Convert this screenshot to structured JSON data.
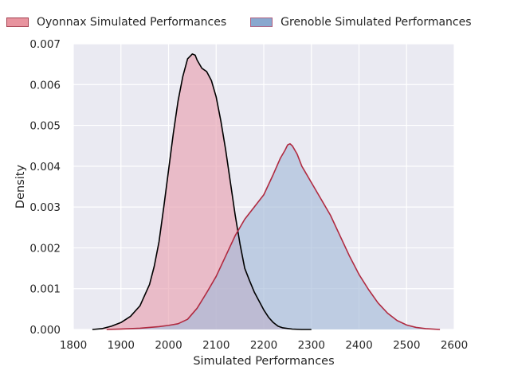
{
  "chart_data": {
    "type": "area",
    "xlabel": "Simulated Performances",
    "ylabel": "Density",
    "xlim": [
      1800,
      2600
    ],
    "ylim": [
      0,
      0.007
    ],
    "x_ticks": [
      "1800",
      "1900",
      "2000",
      "2100",
      "2200",
      "2300",
      "2400",
      "2500",
      "2600"
    ],
    "y_ticks": [
      "0.000",
      "0.001",
      "0.002",
      "0.003",
      "0.004",
      "0.005",
      "0.006",
      "0.007"
    ],
    "grid": true,
    "legend_position": "top",
    "series": [
      {
        "name": "Oyonnax Simulated Performances",
        "fill_color": "#e8a1b1",
        "line_color": "#000000",
        "legend_color": "#e8949f",
        "legend_edge": "#a34050",
        "x": [
          1840,
          1860,
          1880,
          1900,
          1920,
          1940,
          1960,
          1970,
          1980,
          1990,
          2000,
          2010,
          2020,
          2030,
          2040,
          2050,
          2056,
          2060,
          2070,
          2080,
          2090,
          2100,
          2110,
          2120,
          2130,
          2140,
          2150,
          2160,
          2170,
          2180,
          2190,
          2200,
          2210,
          2220,
          2230,
          2240,
          2260,
          2280,
          2300
        ],
        "y": [
          0.0,
          2e-05,
          8e-05,
          0.00017,
          0.00032,
          0.00058,
          0.0011,
          0.00155,
          0.00215,
          0.003,
          0.0039,
          0.0048,
          0.0056,
          0.0062,
          0.00663,
          0.00675,
          0.00672,
          0.0066,
          0.0064,
          0.00632,
          0.0061,
          0.0057,
          0.0051,
          0.0044,
          0.0036,
          0.0028,
          0.0021,
          0.0015,
          0.0012,
          0.00092,
          0.0007,
          0.00048,
          0.0003,
          0.00017,
          8e-05,
          4e-05,
          1e-05,
          0.0,
          0.0
        ]
      },
      {
        "name": "Grenoble Simulated Performances",
        "fill_color": "#a6bcd8",
        "line_color": "#b02a40",
        "legend_color": "#89a8cf",
        "legend_edge": "#b06080",
        "x": [
          1870,
          1900,
          1940,
          1960,
          1980,
          2000,
          2020,
          2040,
          2060,
          2080,
          2100,
          2120,
          2140,
          2160,
          2180,
          2200,
          2220,
          2235,
          2245,
          2250,
          2255,
          2260,
          2270,
          2280,
          2300,
          2320,
          2340,
          2360,
          2380,
          2400,
          2420,
          2440,
          2460,
          2480,
          2500,
          2520,
          2540,
          2570
        ],
        "y": [
          0.0,
          1e-05,
          3e-05,
          5e-05,
          7e-05,
          0.0001,
          0.00014,
          0.00025,
          0.00052,
          0.0009,
          0.0013,
          0.0018,
          0.0023,
          0.0027,
          0.003,
          0.0033,
          0.0038,
          0.0042,
          0.0044,
          0.00452,
          0.00455,
          0.0045,
          0.0043,
          0.004,
          0.0036,
          0.0032,
          0.0028,
          0.0023,
          0.0018,
          0.00135,
          0.00098,
          0.00065,
          0.0004,
          0.00022,
          0.00011,
          5e-05,
          2e-05,
          0.0
        ]
      }
    ]
  }
}
